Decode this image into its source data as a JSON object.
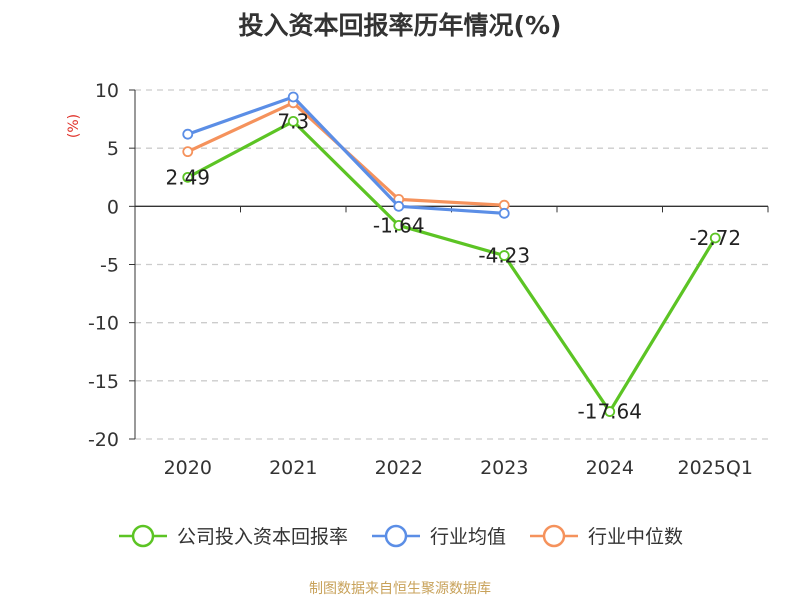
{
  "chart_data": {
    "type": "line",
    "title": "投入资本回报率历年情况(%)",
    "ylabel": "(%)",
    "xlabel": "",
    "categories": [
      "2020",
      "2021",
      "2022",
      "2023",
      "2024",
      "2025Q1"
    ],
    "ylim": [
      -20,
      10
    ],
    "yticks": [
      10,
      5,
      0,
      -5,
      -10,
      -15,
      -20
    ],
    "grid": true,
    "legend_position": "bottom",
    "series": [
      {
        "name": "公司投入资本回报率",
        "color": "#5cc424",
        "values": [
          2.49,
          7.3,
          -1.64,
          -4.23,
          -17.64,
          -2.72
        ],
        "show_labels": true
      },
      {
        "name": "行业均值",
        "color": "#5b8ee6",
        "values": [
          6.2,
          9.4,
          0.0,
          -0.6,
          null,
          null
        ],
        "show_labels": false
      },
      {
        "name": "行业中位数",
        "color": "#f5925c",
        "values": [
          4.7,
          8.9,
          0.6,
          0.1,
          null,
          null
        ],
        "show_labels": false
      }
    ]
  },
  "source_text": "制图数据来自恒生聚源数据库"
}
